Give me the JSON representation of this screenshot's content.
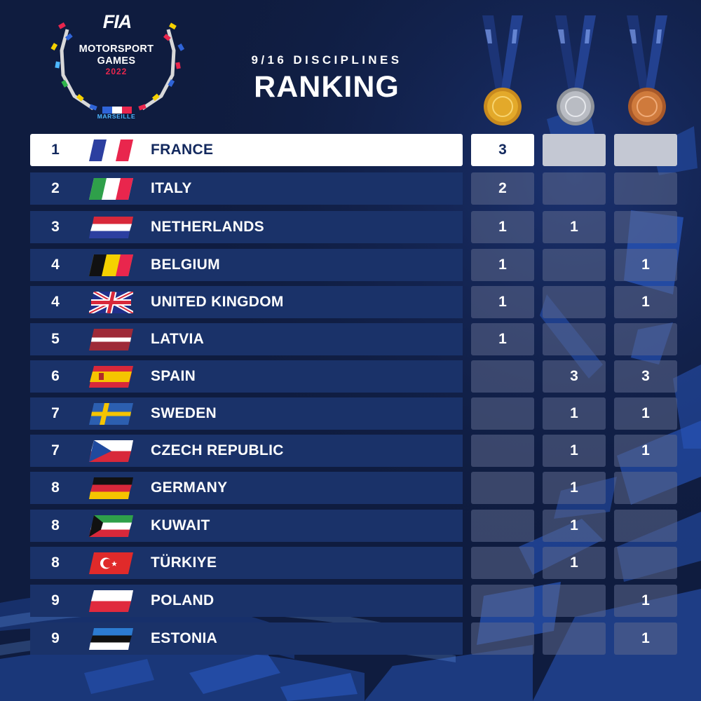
{
  "logo": {
    "org": "FIA",
    "line1": "MOTORSPORT",
    "line2": "GAMES",
    "year": "2022",
    "city": "MARSEILLE"
  },
  "header": {
    "subtitle": "9/16 DISCIPLINES",
    "title": "RANKING"
  },
  "medals": [
    {
      "type": "gold",
      "color": "#e3a92a"
    },
    {
      "type": "silver",
      "color": "#b9bcc3"
    },
    {
      "type": "bronze",
      "color": "#cf7a3c"
    }
  ],
  "colors": {
    "background": "#0f1c3f",
    "row": "#1a3269",
    "highlight_row": "#ffffff",
    "accent": "#2f64d8"
  },
  "rows": [
    {
      "rank": "1",
      "country": "FRANCE",
      "flag": "france-flag",
      "gold": "3",
      "silver": "",
      "bronze": ""
    },
    {
      "rank": "2",
      "country": "ITALY",
      "flag": "italy-flag",
      "gold": "2",
      "silver": "",
      "bronze": ""
    },
    {
      "rank": "3",
      "country": "NETHERLANDS",
      "flag": "netherlands-flag",
      "gold": "1",
      "silver": "1",
      "bronze": ""
    },
    {
      "rank": "4",
      "country": "BELGIUM",
      "flag": "belgium-flag",
      "gold": "1",
      "silver": "",
      "bronze": "1"
    },
    {
      "rank": "4",
      "country": "UNITED KINGDOM",
      "flag": "united-kingdom-flag",
      "gold": "1",
      "silver": "",
      "bronze": "1"
    },
    {
      "rank": "5",
      "country": "LATVIA",
      "flag": "latvia-flag",
      "gold": "1",
      "silver": "",
      "bronze": ""
    },
    {
      "rank": "6",
      "country": "SPAIN",
      "flag": "spain-flag",
      "gold": "",
      "silver": "3",
      "bronze": "3"
    },
    {
      "rank": "7",
      "country": "SWEDEN",
      "flag": "sweden-flag",
      "gold": "",
      "silver": "1",
      "bronze": "1"
    },
    {
      "rank": "7",
      "country": "CZECH REPUBLIC",
      "flag": "czech-republic-flag",
      "gold": "",
      "silver": "1",
      "bronze": "1"
    },
    {
      "rank": "8",
      "country": "GERMANY",
      "flag": "germany-flag",
      "gold": "",
      "silver": "1",
      "bronze": ""
    },
    {
      "rank": "8",
      "country": "KUWAIT",
      "flag": "kuwait-flag",
      "gold": "",
      "silver": "1",
      "bronze": ""
    },
    {
      "rank": "8",
      "country": "TÜRKIYE",
      "flag": "turkiye-flag",
      "gold": "",
      "silver": "1",
      "bronze": ""
    },
    {
      "rank": "9",
      "country": "POLAND",
      "flag": "poland-flag",
      "gold": "",
      "silver": "",
      "bronze": "1"
    },
    {
      "rank": "9",
      "country": "ESTONIA",
      "flag": "estonia-flag",
      "gold": "",
      "silver": "",
      "bronze": "1"
    }
  ]
}
